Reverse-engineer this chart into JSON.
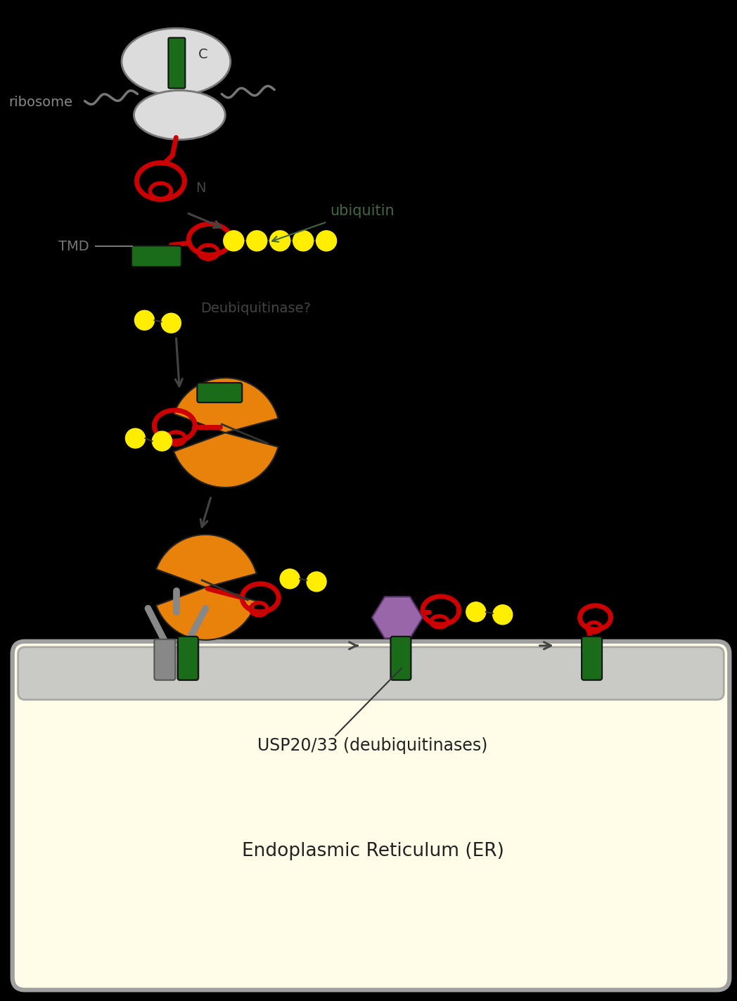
{
  "background_color": "#000000",
  "er_bg_color": "#FFFDE7",
  "er_border_color": "#A0A0A0",
  "red_color": "#CC0000",
  "green_color": "#1A6B1A",
  "yellow_color": "#FFEE00",
  "orange_color": "#E8820A",
  "purple_color": "#9966AA",
  "gray_color": "#888888",
  "white_color": "#DCDCDC",
  "label_ribosome": "ribosome",
  "label_tmd": "TMD",
  "label_N": "N",
  "label_C": "C",
  "label_ubiquitin": "ubiquitin",
  "label_deubiquitinase": "Deubiquitinase?",
  "label_usp": "USP20/33 (deubiquitinases)",
  "label_er": "Endoplasmic Reticulum (ER)"
}
